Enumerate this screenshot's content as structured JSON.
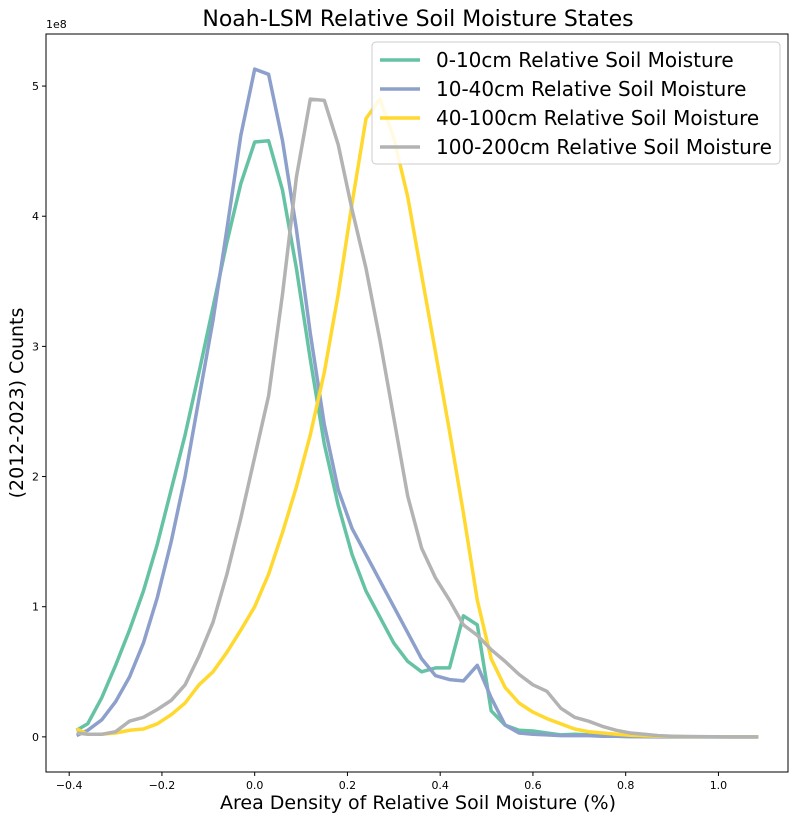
{
  "chart_data": {
    "type": "line",
    "title": "Noah-LSM Relative Soil Moisture States",
    "xlabel": "Area Density of Relative Soil Moisture (%)",
    "ylabel": "(2012-2023) Counts",
    "y_offset_label": "1e8",
    "xlim": [
      -0.45,
      1.15
    ],
    "ylim": [
      -0.27,
      5.4
    ],
    "x_ticks": [
      -0.4,
      -0.2,
      0.0,
      0.2,
      0.4,
      0.6,
      0.8,
      1.0
    ],
    "x_tick_labels": [
      "−0.4",
      "−0.2",
      "0.0",
      "0.2",
      "0.4",
      "0.6",
      "0.8",
      "1.0"
    ],
    "y_ticks": [
      0,
      1,
      2,
      3,
      4,
      5
    ],
    "y_tick_labels": [
      "0",
      "1",
      "2",
      "3",
      "4",
      "5"
    ],
    "grid": false,
    "legend_position": "top-right",
    "series": [
      {
        "name": "0-10cm Relative Soil Moisture",
        "color": "#66c2a5",
        "x": [
          -0.384,
          -0.36,
          -0.33,
          -0.3,
          -0.27,
          -0.24,
          -0.21,
          -0.18,
          -0.15,
          -0.12,
          -0.09,
          -0.06,
          -0.03,
          0.0,
          0.03,
          0.06,
          0.09,
          0.12,
          0.15,
          0.18,
          0.21,
          0.24,
          0.27,
          0.3,
          0.33,
          0.36,
          0.39,
          0.42,
          0.45,
          0.48,
          0.51,
          0.54,
          0.57,
          0.6,
          0.63,
          0.66,
          0.69,
          0.72,
          0.75,
          0.78,
          0.81,
          0.84,
          0.87,
          0.9,
          0.93,
          0.96,
          0.99,
          1.02,
          1.05,
          1.086
        ],
        "y": [
          0.05,
          0.1,
          0.3,
          0.55,
          0.82,
          1.12,
          1.48,
          1.9,
          2.32,
          2.8,
          3.3,
          3.8,
          4.25,
          4.57,
          4.58,
          4.2,
          3.6,
          2.9,
          2.25,
          1.78,
          1.4,
          1.12,
          0.92,
          0.72,
          0.58,
          0.5,
          0.53,
          0.53,
          0.93,
          0.86,
          0.2,
          0.09,
          0.05,
          0.045,
          0.03,
          0.015,
          0.02,
          0.015,
          0.01,
          0.005,
          0.003,
          0.002,
          0.001,
          0.0,
          0.0,
          0.0,
          0.0,
          0.0,
          0.0,
          0.0
        ]
      },
      {
        "name": "10-40cm Relative Soil Moisture",
        "color": "#8da0cb",
        "x": [
          -0.384,
          -0.36,
          -0.33,
          -0.3,
          -0.27,
          -0.24,
          -0.21,
          -0.18,
          -0.15,
          -0.12,
          -0.09,
          -0.06,
          -0.03,
          0.0,
          0.03,
          0.06,
          0.09,
          0.12,
          0.15,
          0.18,
          0.21,
          0.24,
          0.27,
          0.3,
          0.33,
          0.36,
          0.39,
          0.42,
          0.45,
          0.48,
          0.51,
          0.54,
          0.57,
          0.6,
          0.63,
          0.66,
          0.69,
          0.72,
          0.75,
          0.78,
          0.81,
          0.84,
          0.87,
          0.9,
          0.93,
          0.96,
          0.99,
          1.02,
          1.05,
          1.086
        ],
        "y": [
          0.01,
          0.05,
          0.13,
          0.27,
          0.46,
          0.72,
          1.07,
          1.5,
          2.0,
          2.6,
          3.2,
          3.9,
          4.62,
          5.13,
          5.09,
          4.58,
          3.9,
          3.1,
          2.4,
          1.9,
          1.6,
          1.4,
          1.2,
          1.0,
          0.8,
          0.6,
          0.47,
          0.44,
          0.43,
          0.55,
          0.3,
          0.09,
          0.03,
          0.02,
          0.015,
          0.01,
          0.01,
          0.01,
          0.005,
          0.005,
          0.002,
          0.001,
          0.0,
          0.0,
          0.0,
          0.0,
          0.0,
          0.0,
          0.0,
          0.0
        ]
      },
      {
        "name": "40-100cm Relative Soil Moisture",
        "color": "#ffd92f",
        "x": [
          -0.384,
          -0.36,
          -0.33,
          -0.3,
          -0.27,
          -0.24,
          -0.21,
          -0.18,
          -0.15,
          -0.12,
          -0.09,
          -0.06,
          -0.03,
          0.0,
          0.03,
          0.06,
          0.09,
          0.12,
          0.15,
          0.18,
          0.21,
          0.24,
          0.27,
          0.3,
          0.33,
          0.36,
          0.39,
          0.42,
          0.45,
          0.48,
          0.51,
          0.54,
          0.57,
          0.6,
          0.63,
          0.66,
          0.69,
          0.72,
          0.75,
          0.78,
          0.81,
          0.84,
          0.87,
          0.9,
          0.93,
          0.96,
          0.99,
          1.02,
          1.05,
          1.086
        ],
        "y": [
          0.06,
          0.02,
          0.02,
          0.03,
          0.05,
          0.06,
          0.1,
          0.17,
          0.26,
          0.4,
          0.5,
          0.65,
          0.82,
          1.0,
          1.25,
          1.57,
          1.92,
          2.32,
          2.8,
          3.4,
          4.1,
          4.75,
          4.9,
          4.6,
          4.15,
          3.55,
          2.95,
          2.35,
          1.72,
          1.05,
          0.6,
          0.38,
          0.26,
          0.19,
          0.14,
          0.1,
          0.06,
          0.04,
          0.03,
          0.02,
          0.013,
          0.008,
          0.005,
          0.003,
          0.002,
          0.001,
          0.001,
          0.0,
          0.0,
          0.0
        ]
      },
      {
        "name": "100-200cm Relative Soil Moisture",
        "color": "#b3b3b3",
        "x": [
          -0.384,
          -0.36,
          -0.33,
          -0.3,
          -0.27,
          -0.24,
          -0.21,
          -0.18,
          -0.15,
          -0.12,
          -0.09,
          -0.06,
          -0.03,
          0.0,
          0.03,
          0.06,
          0.09,
          0.12,
          0.15,
          0.18,
          0.21,
          0.24,
          0.27,
          0.3,
          0.33,
          0.36,
          0.39,
          0.42,
          0.45,
          0.48,
          0.51,
          0.54,
          0.57,
          0.6,
          0.63,
          0.66,
          0.69,
          0.72,
          0.75,
          0.78,
          0.81,
          0.84,
          0.87,
          0.9,
          0.93,
          0.96,
          0.99,
          1.02,
          1.05,
          1.086
        ],
        "y": [
          0.03,
          0.02,
          0.02,
          0.04,
          0.12,
          0.15,
          0.21,
          0.28,
          0.4,
          0.62,
          0.88,
          1.25,
          1.68,
          2.15,
          2.62,
          3.4,
          4.3,
          4.9,
          4.89,
          4.55,
          4.05,
          3.6,
          3.05,
          2.45,
          1.85,
          1.45,
          1.22,
          1.05,
          0.86,
          0.78,
          0.67,
          0.58,
          0.48,
          0.4,
          0.35,
          0.22,
          0.15,
          0.12,
          0.08,
          0.05,
          0.03,
          0.02,
          0.01,
          0.005,
          0.003,
          0.002,
          0.001,
          0.0,
          0.0,
          0.0
        ]
      }
    ]
  }
}
